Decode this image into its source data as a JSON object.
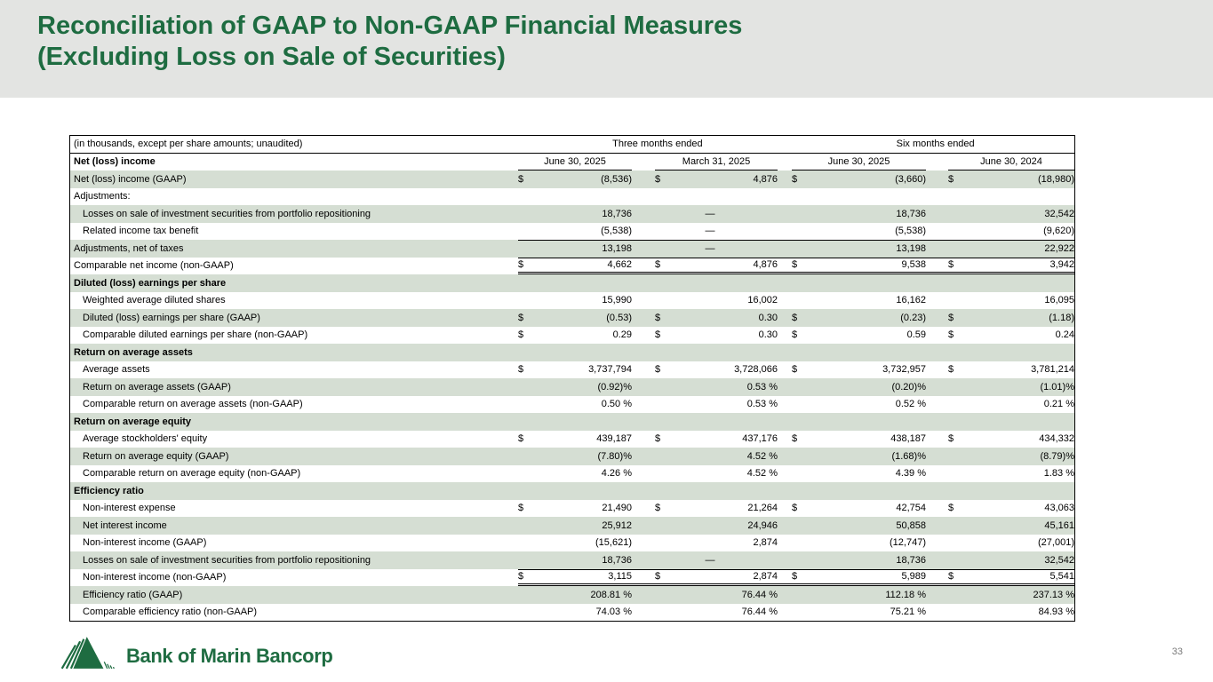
{
  "slide": {
    "title_line1": "Reconciliation of GAAP to Non-GAAP Financial Measures",
    "title_line2": "(Excluding Loss on Sale of Securities)",
    "page_number": "33"
  },
  "brand": {
    "name": "Bank of Marin Bancorp",
    "logo_icon": "mountain-logo"
  },
  "colors": {
    "brand_green": "#1e6c41",
    "row_shade": "#d5ded3",
    "header_band": "#e3e4e2",
    "page_number_gray": "#7a7a7a",
    "table_border": "#000000"
  },
  "table": {
    "caption": "(in thousands, except per share amounts; unaudited)",
    "group_headers": [
      "Three months ended",
      "Six months ended"
    ],
    "row_header_label": "Net (loss) income",
    "col_headers": [
      "June 30, 2025",
      "March 31, 2025",
      "June 30, 2025",
      "June 30, 2024"
    ],
    "rows": [
      {
        "label": "Net (loss) income (GAAP)",
        "indent": 0,
        "bold": false,
        "shade": true,
        "dollar": true,
        "values": [
          "(8,536)",
          "4,876",
          "(3,660)",
          "(18,980)"
        ]
      },
      {
        "label": "Adjustments:",
        "indent": 0,
        "bold": false,
        "shade": false,
        "dollar": false,
        "values": [
          "",
          "",
          "",
          ""
        ]
      },
      {
        "label": "Losses on sale of investment securities from portfolio repositioning",
        "indent": 1,
        "bold": false,
        "shade": true,
        "dollar": false,
        "values": [
          "18,736",
          "—",
          "18,736",
          "32,542"
        ]
      },
      {
        "label": "Related income tax benefit",
        "indent": 1,
        "bold": false,
        "shade": false,
        "dollar": false,
        "values": [
          "(5,538)",
          "—",
          "(5,538)",
          "(9,620)"
        ]
      },
      {
        "label": "Adjustments, net of taxes",
        "indent": 0,
        "bold": false,
        "shade": true,
        "dollar": false,
        "border_top": true,
        "values": [
          "13,198",
          "—",
          "13,198",
          "22,922"
        ]
      },
      {
        "label": "Comparable net income (non-GAAP)",
        "indent": 0,
        "bold": false,
        "shade": false,
        "dollar": true,
        "border_top": true,
        "border_bottom": "double",
        "values": [
          "4,662",
          "4,876",
          "9,538",
          "3,942"
        ]
      },
      {
        "label": "Diluted (loss) earnings per share",
        "indent": 0,
        "bold": true,
        "shade": true,
        "dollar": false,
        "section": true,
        "values": [
          "",
          "",
          "",
          ""
        ]
      },
      {
        "label": "Weighted average diluted shares",
        "indent": 1,
        "bold": false,
        "shade": false,
        "dollar": false,
        "values": [
          "15,990",
          "16,002",
          "16,162",
          "16,095"
        ]
      },
      {
        "label": "Diluted (loss) earnings per share (GAAP)",
        "indent": 1,
        "bold": false,
        "shade": true,
        "dollar": true,
        "values": [
          "(0.53)",
          "0.30",
          "(0.23)",
          "(1.18)"
        ]
      },
      {
        "label": "Comparable diluted earnings per share (non-GAAP)",
        "indent": 1,
        "bold": false,
        "shade": false,
        "dollar": true,
        "values": [
          "0.29",
          "0.30",
          "0.59",
          "0.24"
        ]
      },
      {
        "label": "Return on average assets",
        "indent": 0,
        "bold": true,
        "shade": true,
        "dollar": false,
        "section": true,
        "values": [
          "",
          "",
          "",
          ""
        ]
      },
      {
        "label": "Average assets",
        "indent": 1,
        "bold": false,
        "shade": false,
        "dollar": true,
        "values": [
          "3,737,794",
          "3,728,066",
          "3,732,957",
          "3,781,214"
        ]
      },
      {
        "label": "Return on average assets (GAAP)",
        "indent": 1,
        "bold": false,
        "shade": true,
        "dollar": false,
        "values": [
          "(0.92)%",
          "0.53 %",
          "(0.20)%",
          "(1.01)%"
        ]
      },
      {
        "label": "Comparable return on average assets (non-GAAP)",
        "indent": 1,
        "bold": false,
        "shade": false,
        "dollar": false,
        "values": [
          "0.50 %",
          "0.53 %",
          "0.52 %",
          "0.21 %"
        ]
      },
      {
        "label": "Return on average equity",
        "indent": 0,
        "bold": true,
        "shade": true,
        "dollar": false,
        "section": true,
        "values": [
          "",
          "",
          "",
          ""
        ]
      },
      {
        "label": "Average stockholders' equity",
        "indent": 1,
        "bold": false,
        "shade": false,
        "dollar": true,
        "values": [
          "439,187",
          "437,176",
          "438,187",
          "434,332"
        ]
      },
      {
        "label": "Return on average equity (GAAP)",
        "indent": 1,
        "bold": false,
        "shade": true,
        "dollar": false,
        "values": [
          "(7.80)%",
          "4.52 %",
          "(1.68)%",
          "(8.79)%"
        ]
      },
      {
        "label": "Comparable return on average equity (non-GAAP)",
        "indent": 1,
        "bold": false,
        "shade": false,
        "dollar": false,
        "values": [
          "4.26 %",
          "4.52 %",
          "4.39 %",
          "1.83 %"
        ]
      },
      {
        "label": "Efficiency ratio",
        "indent": 0,
        "bold": true,
        "shade": true,
        "dollar": false,
        "section": true,
        "values": [
          "",
          "",
          "",
          ""
        ]
      },
      {
        "label": "Non-interest expense",
        "indent": 1,
        "bold": false,
        "shade": false,
        "dollar": true,
        "values": [
          "21,490",
          "21,264",
          "42,754",
          "43,063"
        ]
      },
      {
        "label": "Net interest income",
        "indent": 1,
        "bold": false,
        "shade": true,
        "dollar": false,
        "values": [
          "25,912",
          "24,946",
          "50,858",
          "45,161"
        ]
      },
      {
        "label": "Non-interest income (GAAP)",
        "indent": 1,
        "bold": false,
        "shade": false,
        "dollar": false,
        "values": [
          "(15,621)",
          "2,874",
          "(12,747)",
          "(27,001)"
        ]
      },
      {
        "label": "Losses on sale of investment securities from portfolio repositioning",
        "indent": 1,
        "bold": false,
        "shade": true,
        "dollar": false,
        "values": [
          "18,736",
          "—",
          "18,736",
          "32,542"
        ]
      },
      {
        "label": "Non-interest income (non-GAAP)",
        "indent": 1,
        "bold": false,
        "shade": false,
        "dollar": true,
        "border_top": true,
        "border_bottom": "double",
        "values": [
          "3,115",
          "2,874",
          "5,989",
          "5,541"
        ]
      },
      {
        "label": "Efficiency ratio (GAAP)",
        "indent": 1,
        "bold": false,
        "shade": true,
        "dollar": false,
        "values": [
          "208.81 %",
          "76.44 %",
          "112.18 %",
          "237.13 %"
        ]
      },
      {
        "label": "Comparable efficiency ratio (non-GAAP)",
        "indent": 1,
        "bold": false,
        "shade": false,
        "dollar": false,
        "values": [
          "74.03 %",
          "76.44 %",
          "75.21 %",
          "84.93 %"
        ]
      }
    ]
  }
}
